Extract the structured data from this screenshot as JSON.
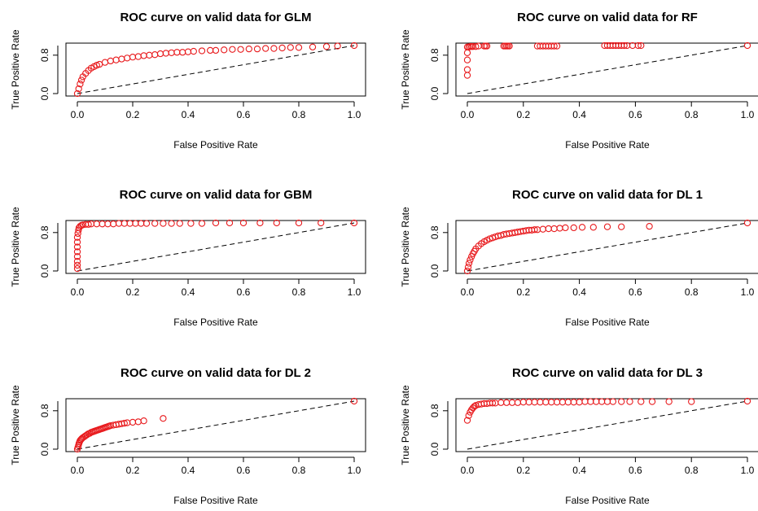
{
  "chart_data": [
    {
      "type": "scatter",
      "title": "ROC curve on valid data for GLM",
      "xlabel": "False Positive Rate",
      "ylabel": "True Positive Rate",
      "xlim": [
        0,
        1
      ],
      "ylim": [
        0,
        1
      ],
      "xticks": [
        "0.0",
        "0.2",
        "0.4",
        "0.6",
        "0.8",
        "1.0"
      ],
      "yticks": [
        "0.0",
        "0.8"
      ],
      "grid": false,
      "marker_color": "#e8191c",
      "reference_line": "dashed diagonal",
      "x": [
        0,
        0.005,
        0.01,
        0.015,
        0.02,
        0.03,
        0.04,
        0.05,
        0.06,
        0.07,
        0.08,
        0.1,
        0.12,
        0.14,
        0.16,
        0.18,
        0.2,
        0.22,
        0.24,
        0.26,
        0.28,
        0.3,
        0.32,
        0.34,
        0.36,
        0.38,
        0.4,
        0.42,
        0.45,
        0.48,
        0.5,
        0.53,
        0.56,
        0.59,
        0.62,
        0.65,
        0.68,
        0.71,
        0.74,
        0.77,
        0.8,
        0.85,
        0.9,
        0.94,
        1.0
      ],
      "y": [
        0,
        0.1,
        0.2,
        0.28,
        0.35,
        0.42,
        0.48,
        0.53,
        0.56,
        0.59,
        0.61,
        0.65,
        0.68,
        0.7,
        0.72,
        0.74,
        0.76,
        0.77,
        0.79,
        0.8,
        0.81,
        0.83,
        0.84,
        0.85,
        0.86,
        0.86,
        0.87,
        0.88,
        0.89,
        0.9,
        0.9,
        0.91,
        0.92,
        0.92,
        0.93,
        0.93,
        0.94,
        0.94,
        0.95,
        0.96,
        0.96,
        0.97,
        0.98,
        0.99,
        1.0
      ]
    },
    {
      "type": "scatter",
      "title": "ROC curve on valid data for RF",
      "xlabel": "False Positive Rate",
      "ylabel": "True Positive Rate",
      "xlim": [
        0,
        1
      ],
      "ylim": [
        0,
        1
      ],
      "xticks": [
        "0.0",
        "0.2",
        "0.4",
        "0.6",
        "0.8",
        "1.0"
      ],
      "yticks": [
        "0.0",
        "0.8"
      ],
      "grid": false,
      "marker_color": "#e8191c",
      "reference_line": "dashed diagonal",
      "x": [
        0,
        0,
        0,
        0,
        0,
        0.005,
        0.01,
        0.015,
        0.02,
        0.03,
        0.04,
        0.06,
        0.065,
        0.07,
        0.13,
        0.135,
        0.14,
        0.145,
        0.15,
        0.25,
        0.26,
        0.27,
        0.28,
        0.29,
        0.3,
        0.31,
        0.32,
        0.49,
        0.5,
        0.51,
        0.52,
        0.53,
        0.54,
        0.55,
        0.56,
        0.57,
        0.59,
        0.61,
        0.62,
        1.0
      ],
      "y": [
        0.38,
        0.5,
        0.7,
        0.85,
        0.97,
        0.97,
        0.98,
        0.98,
        0.98,
        0.98,
        0.99,
        0.99,
        0.99,
        0.99,
        0.99,
        0.99,
        0.99,
        0.99,
        0.99,
        0.99,
        0.99,
        0.99,
        0.99,
        0.99,
        0.99,
        0.99,
        0.99,
        1.0,
        1.0,
        1.0,
        1.0,
        1.0,
        1.0,
        1.0,
        1.0,
        1.0,
        1.0,
        1.0,
        1.0,
        1.0
      ]
    },
    {
      "type": "scatter",
      "title": "ROC curve on valid data for GBM",
      "xlabel": "False Positive Rate",
      "ylabel": "True Positive Rate",
      "xlim": [
        0,
        1
      ],
      "ylim": [
        0,
        1
      ],
      "xticks": [
        "0.0",
        "0.2",
        "0.4",
        "0.6",
        "0.8",
        "1.0"
      ],
      "yticks": [
        "0.0",
        "0.8"
      ],
      "grid": false,
      "marker_color": "#e8191c",
      "reference_line": "dashed diagonal",
      "x": [
        0,
        0,
        0,
        0,
        0,
        0,
        0,
        0,
        0.002,
        0.004,
        0.006,
        0.01,
        0.015,
        0.02,
        0.03,
        0.04,
        0.05,
        0.07,
        0.09,
        0.11,
        0.13,
        0.15,
        0.17,
        0.19,
        0.21,
        0.23,
        0.25,
        0.28,
        0.31,
        0.34,
        0.37,
        0.41,
        0.45,
        0.5,
        0.55,
        0.6,
        0.66,
        0.72,
        0.8,
        0.88,
        1.0
      ],
      "y": [
        0.05,
        0.12,
        0.2,
        0.3,
        0.4,
        0.5,
        0.6,
        0.7,
        0.78,
        0.85,
        0.9,
        0.93,
        0.95,
        0.96,
        0.97,
        0.97,
        0.98,
        0.98,
        0.98,
        0.98,
        0.98,
        0.99,
        0.99,
        0.99,
        0.99,
        0.99,
        0.99,
        0.99,
        0.99,
        0.99,
        0.99,
        0.99,
        0.99,
        1.0,
        1.0,
        1.0,
        1.0,
        1.0,
        1.0,
        1.0,
        1.0
      ]
    },
    {
      "type": "scatter",
      "title": "ROC curve on valid data for DL 1",
      "xlabel": "False Positive Rate",
      "ylabel": "True Positive Rate",
      "xlim": [
        0,
        1
      ],
      "ylim": [
        0,
        1
      ],
      "xticks": [
        "0.0",
        "0.2",
        "0.4",
        "0.6",
        "0.8",
        "1.0"
      ],
      "yticks": [
        "0.0",
        "0.8"
      ],
      "grid": false,
      "marker_color": "#e8191c",
      "reference_line": "dashed diagonal",
      "x": [
        0,
        0.003,
        0.006,
        0.01,
        0.015,
        0.02,
        0.025,
        0.03,
        0.04,
        0.05,
        0.06,
        0.07,
        0.08,
        0.09,
        0.1,
        0.11,
        0.12,
        0.13,
        0.14,
        0.15,
        0.16,
        0.17,
        0.18,
        0.19,
        0.2,
        0.21,
        0.22,
        0.23,
        0.24,
        0.25,
        0.27,
        0.29,
        0.31,
        0.33,
        0.35,
        0.38,
        0.41,
        0.45,
        0.5,
        0.55,
        0.65,
        1.0
      ],
      "y": [
        0,
        0.08,
        0.16,
        0.23,
        0.3,
        0.36,
        0.41,
        0.46,
        0.52,
        0.57,
        0.61,
        0.64,
        0.67,
        0.69,
        0.71,
        0.73,
        0.74,
        0.76,
        0.77,
        0.78,
        0.79,
        0.8,
        0.81,
        0.82,
        0.83,
        0.84,
        0.85,
        0.85,
        0.86,
        0.86,
        0.87,
        0.88,
        0.88,
        0.89,
        0.9,
        0.9,
        0.91,
        0.91,
        0.92,
        0.92,
        0.93,
        1.0
      ]
    },
    {
      "type": "scatter",
      "title": "ROC curve on valid data for DL 2",
      "xlabel": "False Positive Rate",
      "ylabel": "True Positive Rate",
      "xlim": [
        0,
        1
      ],
      "ylim": [
        0,
        1
      ],
      "xticks": [
        "0.0",
        "0.2",
        "0.4",
        "0.6",
        "0.8",
        "1.0"
      ],
      "yticks": [
        "0.0",
        "0.8"
      ],
      "grid": false,
      "marker_color": "#e8191c",
      "reference_line": "dashed diagonal",
      "x": [
        0,
        0.002,
        0.004,
        0.006,
        0.008,
        0.01,
        0.013,
        0.016,
        0.02,
        0.025,
        0.03,
        0.035,
        0.04,
        0.045,
        0.05,
        0.055,
        0.06,
        0.065,
        0.07,
        0.075,
        0.08,
        0.085,
        0.09,
        0.095,
        0.1,
        0.105,
        0.11,
        0.115,
        0.12,
        0.13,
        0.14,
        0.15,
        0.16,
        0.17,
        0.18,
        0.2,
        0.22,
        0.24,
        0.31,
        1.0
      ],
      "y": [
        0,
        0.04,
        0.08,
        0.12,
        0.15,
        0.18,
        0.2,
        0.22,
        0.24,
        0.26,
        0.28,
        0.3,
        0.32,
        0.33,
        0.35,
        0.36,
        0.37,
        0.38,
        0.39,
        0.4,
        0.41,
        0.42,
        0.43,
        0.44,
        0.45,
        0.46,
        0.47,
        0.48,
        0.49,
        0.5,
        0.51,
        0.52,
        0.53,
        0.54,
        0.55,
        0.56,
        0.57,
        0.59,
        0.64,
        1.0
      ]
    },
    {
      "type": "scatter",
      "title": "ROC curve on valid data for DL 3",
      "xlabel": "False Positive Rate",
      "ylabel": "True Positive Rate",
      "xlim": [
        0,
        1
      ],
      "ylim": [
        0,
        1
      ],
      "xticks": [
        "0.0",
        "0.2",
        "0.4",
        "0.6",
        "0.8",
        "1.0"
      ],
      "yticks": [
        "0.0",
        "0.8"
      ],
      "grid": false,
      "marker_color": "#e8191c",
      "reference_line": "dashed diagonal",
      "x": [
        0.0,
        0.005,
        0.01,
        0.015,
        0.02,
        0.025,
        0.03,
        0.04,
        0.05,
        0.06,
        0.07,
        0.08,
        0.09,
        0.1,
        0.12,
        0.14,
        0.16,
        0.18,
        0.2,
        0.22,
        0.24,
        0.26,
        0.28,
        0.3,
        0.32,
        0.34,
        0.36,
        0.38,
        0.4,
        0.42,
        0.44,
        0.46,
        0.48,
        0.5,
        0.52,
        0.55,
        0.58,
        0.62,
        0.66,
        0.72,
        0.8,
        1.0
      ],
      "y": [
        0.6,
        0.7,
        0.77,
        0.82,
        0.86,
        0.89,
        0.91,
        0.93,
        0.94,
        0.95,
        0.95,
        0.96,
        0.96,
        0.96,
        0.97,
        0.97,
        0.97,
        0.97,
        0.98,
        0.98,
        0.98,
        0.98,
        0.98,
        0.98,
        0.98,
        0.98,
        0.98,
        0.98,
        0.98,
        0.99,
        0.99,
        0.99,
        0.99,
        0.99,
        0.99,
        0.99,
        0.99,
        0.99,
        0.99,
        0.99,
        0.99,
        1.0
      ]
    }
  ]
}
